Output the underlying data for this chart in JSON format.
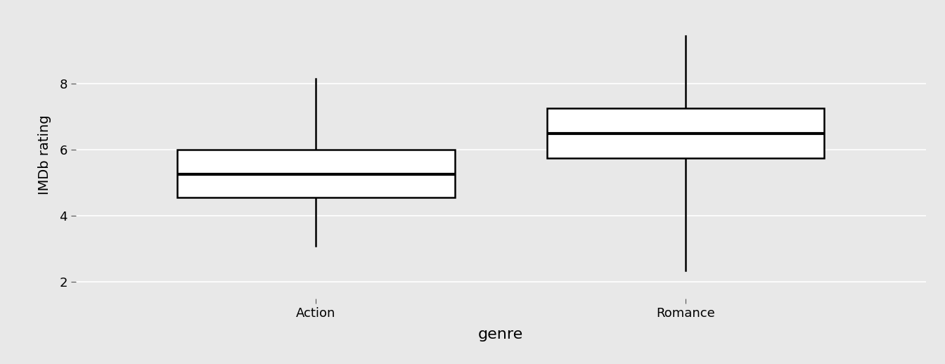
{
  "categories": [
    "Action",
    "Romance"
  ],
  "boxes": [
    {
      "label": "Action",
      "q1": 4.55,
      "median": 5.25,
      "q3": 6.0,
      "whisker_low": 3.1,
      "whisker_high": 8.15
    },
    {
      "label": "Romance",
      "q1": 5.75,
      "median": 6.5,
      "q3": 7.25,
      "whisker_low": 2.35,
      "whisker_high": 9.45
    }
  ],
  "ylabel": "IMDb rating",
  "xlabel": "genre",
  "ylim": [
    1.5,
    10.2
  ],
  "yticks": [
    2,
    4,
    6,
    8
  ],
  "bg_color": "#E8E8E8",
  "panel_bg": "#E8E8E8",
  "grid_color": "#FFFFFF",
  "box_fill": "#FFFFFF",
  "box_edge": "#000000",
  "median_color": "#000000",
  "whisker_color": "#000000",
  "box_width": 0.75,
  "linewidth": 1.8,
  "median_linewidth": 3.0,
  "xlabel_fontsize": 16,
  "ylabel_fontsize": 14,
  "tick_fontsize": 13,
  "x_positions": [
    1,
    2
  ],
  "xlim": [
    0.35,
    2.65
  ]
}
